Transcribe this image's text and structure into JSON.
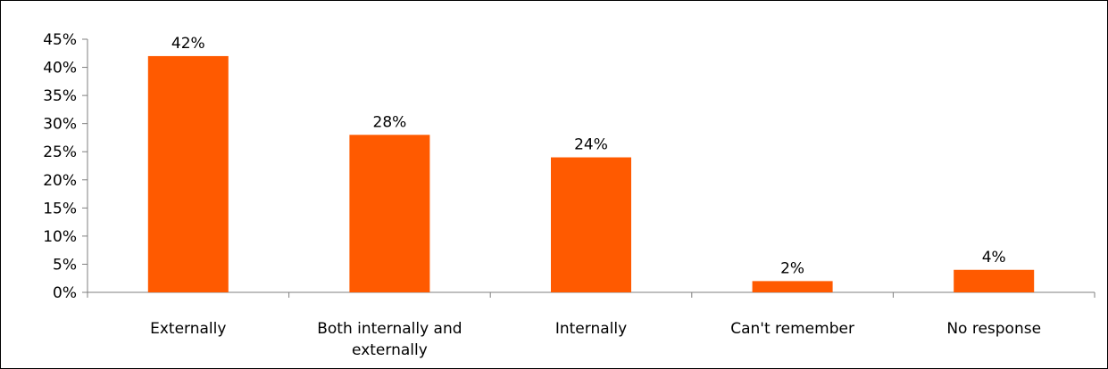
{
  "chart_data": {
    "type": "bar",
    "categories": [
      "Externally",
      "Both internally and externally",
      "Internally",
      "Can't remember",
      "No response"
    ],
    "category_label_lines": [
      [
        "Externally"
      ],
      [
        "Both internally and",
        "externally"
      ],
      [
        "Internally"
      ],
      [
        "Can't remember"
      ],
      [
        "No response"
      ]
    ],
    "values": [
      42,
      28,
      24,
      2,
      4
    ],
    "data_labels": [
      "42%",
      "28%",
      "24%",
      "2%",
      "4%"
    ],
    "ylim": [
      0,
      45
    ],
    "y_ticks": [
      0,
      5,
      10,
      15,
      20,
      25,
      30,
      35,
      40,
      45
    ],
    "y_tick_labels": [
      "0%",
      "5%",
      "10%",
      "15%",
      "20%",
      "25%",
      "30%",
      "35%",
      "40%",
      "45%"
    ],
    "title": "",
    "xlabel": "",
    "ylabel": "",
    "grid": false,
    "legend": "none",
    "bar_color": "#ff5a00"
  }
}
